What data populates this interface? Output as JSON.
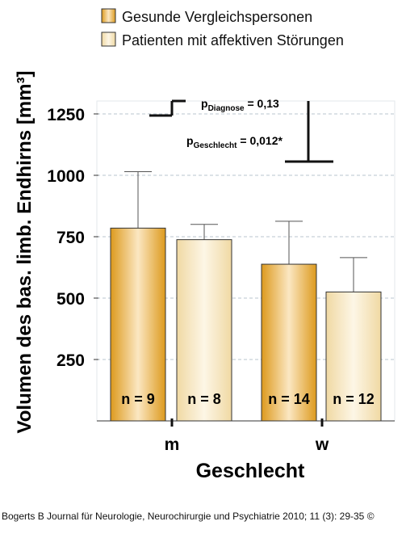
{
  "chart_data": {
    "type": "bar",
    "categories": [
      "m",
      "w"
    ],
    "series": [
      {
        "name": "Gesunde Vergleichspersonen",
        "values": [
          785,
          638
        ],
        "errors": [
          230,
          175
        ],
        "n_labels": [
          "n = 9",
          "n = 14"
        ]
      },
      {
        "name": "Patienten mit affektiven Störungen",
        "values": [
          738,
          525
        ],
        "errors": [
          62,
          140
        ],
        "n_labels": [
          "n = 8",
          "n = 12"
        ]
      }
    ],
    "xlabel": "Geschlecht",
    "ylabel": "Volumen des bas. limb. Endhirns [mm³]",
    "yticks": [
      250,
      500,
      750,
      1000,
      1250
    ],
    "ylim": [
      0,
      1300
    ],
    "grid": "horizontal-dashed",
    "legend_position": "top",
    "annotations": {
      "p_diagnose": {
        "main": "p",
        "sub": "Diagnose",
        "value": " = 0,13"
      },
      "p_geschlecht": {
        "main": "p",
        "sub": "Geschlecht",
        "value": " = 0,012*"
      }
    },
    "colors": {
      "series1_dark": "#dd9a1e",
      "series1_light": "#fbe7c2",
      "series2_dark": "#f0d9a3",
      "series2_light": "#fdf6e6",
      "grid": "#b8c4cf"
    }
  },
  "credit": "Bogerts B Journal für Neurologie, Neurochirurgie und Psychiatrie 2010; 11 (3): 29-35 ©"
}
